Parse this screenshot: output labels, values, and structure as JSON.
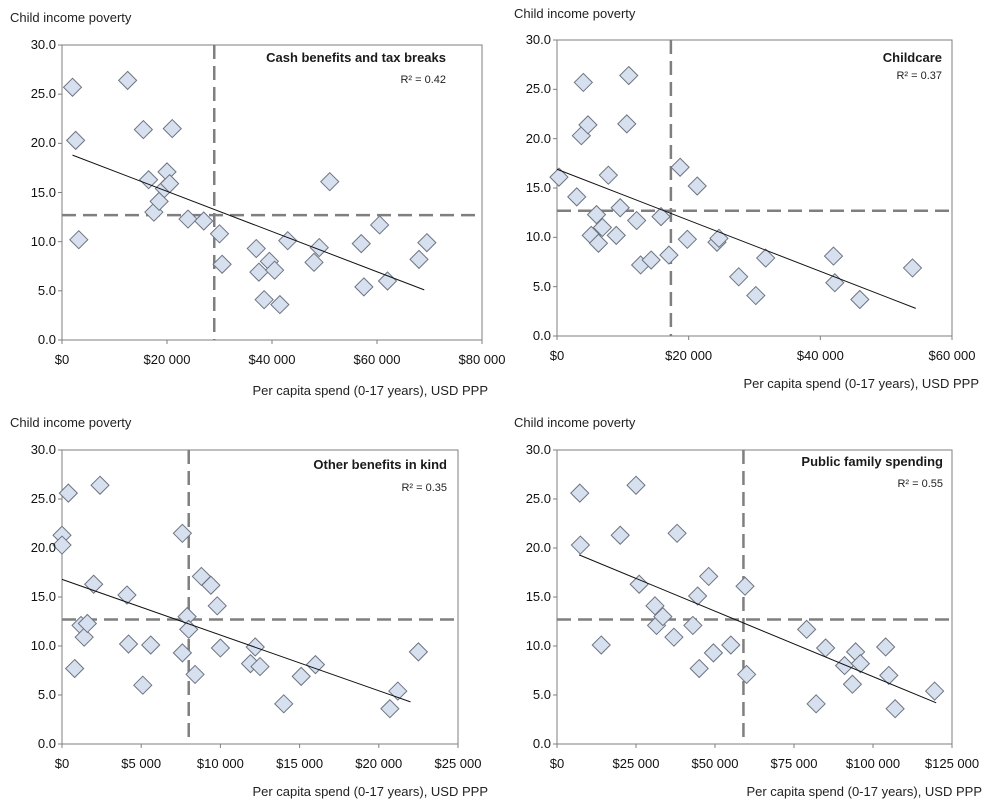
{
  "chart_data": [
    {
      "type": "scatter",
      "title": "Cash benefits and tax breaks",
      "r2_label": "R² = 0.42",
      "ylabel": "Child income poverty",
      "xlabel": "Per capita spend (0-17 years), USD PPP",
      "xlim": [
        0,
        80000
      ],
      "ylim": [
        0,
        30
      ],
      "xticks": [
        0,
        20000,
        40000,
        60000,
        80000
      ],
      "xtick_labels": [
        "$0",
        "$20 000",
        "$40 000",
        "$60 000",
        "$80 000"
      ],
      "yticks": [
        0,
        5,
        10,
        15,
        20,
        25,
        30
      ],
      "ytick_labels": [
        "0.0",
        "5.0",
        "10.0",
        "15.0",
        "20.0",
        "25.0",
        "30.0"
      ],
      "ref_x": 29000,
      "ref_y": 12.7,
      "trendline": [
        [
          2000,
          18.8
        ],
        [
          69000,
          5.1
        ]
      ],
      "points": [
        [
          2000,
          25.7
        ],
        [
          2600,
          20.3
        ],
        [
          3200,
          10.2
        ],
        [
          12500,
          26.4
        ],
        [
          15500,
          21.4
        ],
        [
          16500,
          16.3
        ],
        [
          17500,
          13.0
        ],
        [
          18500,
          14.1
        ],
        [
          19500,
          15.4
        ],
        [
          20000,
          17.1
        ],
        [
          20500,
          15.9
        ],
        [
          21000,
          21.5
        ],
        [
          24000,
          12.3
        ],
        [
          27000,
          12.1
        ],
        [
          30000,
          10.8
        ],
        [
          30500,
          7.7
        ],
        [
          37000,
          9.3
        ],
        [
          37500,
          6.9
        ],
        [
          38500,
          4.1
        ],
        [
          39500,
          8.0
        ],
        [
          40500,
          7.1
        ],
        [
          41500,
          3.6
        ],
        [
          43000,
          10.1
        ],
        [
          48000,
          7.9
        ],
        [
          49000,
          9.4
        ],
        [
          51000,
          16.1
        ],
        [
          57000,
          9.8
        ],
        [
          57500,
          5.4
        ],
        [
          60500,
          11.7
        ],
        [
          62000,
          6.0
        ],
        [
          68000,
          8.2
        ],
        [
          69500,
          9.9
        ]
      ]
    },
    {
      "type": "scatter",
      "title": "Childcare",
      "r2_label": "R² = 0.37",
      "ylabel": "Child income poverty",
      "xlabel": "Per capita spend (0-17 years), USD PPP",
      "xlim": [
        0,
        60000
      ],
      "ylim": [
        0,
        30
      ],
      "xticks": [
        0,
        20000,
        40000,
        60000
      ],
      "xtick_labels": [
        "$0",
        "$20 000",
        "$40 000",
        "$60 000"
      ],
      "yticks": [
        0,
        5,
        10,
        15,
        20,
        25,
        30
      ],
      "ytick_labels": [
        "0.0",
        "5.0",
        "10.0",
        "15.0",
        "20.0",
        "25.0",
        "30.0"
      ],
      "ref_x": 17300,
      "ref_y": 12.7,
      "trendline": [
        [
          0,
          16.9
        ],
        [
          54500,
          2.8
        ]
      ],
      "points": [
        [
          300,
          16.1
        ],
        [
          3000,
          14.1
        ],
        [
          3700,
          20.3
        ],
        [
          4000,
          25.7
        ],
        [
          4700,
          21.4
        ],
        [
          5200,
          10.2
        ],
        [
          6000,
          12.3
        ],
        [
          6300,
          9.4
        ],
        [
          6900,
          11.0
        ],
        [
          7800,
          16.3
        ],
        [
          9000,
          10.2
        ],
        [
          9600,
          13.0
        ],
        [
          10600,
          21.5
        ],
        [
          10900,
          26.4
        ],
        [
          12100,
          11.7
        ],
        [
          12700,
          7.2
        ],
        [
          14300,
          7.7
        ],
        [
          15800,
          12.1
        ],
        [
          17000,
          8.2
        ],
        [
          18700,
          17.1
        ],
        [
          19800,
          9.8
        ],
        [
          21300,
          15.2
        ],
        [
          24300,
          9.5
        ],
        [
          24600,
          9.9
        ],
        [
          27600,
          6.0
        ],
        [
          30200,
          4.1
        ],
        [
          31700,
          7.9
        ],
        [
          42000,
          8.1
        ],
        [
          42200,
          5.4
        ],
        [
          46000,
          3.7
        ],
        [
          54000,
          6.9
        ]
      ]
    },
    {
      "type": "scatter",
      "title": "Other benefits in kind",
      "r2_label": "R² = 0.35",
      "ylabel": "Child income poverty",
      "xlabel": "Per capita spend (0-17 years), USD PPP",
      "xlim": [
        0,
        25000
      ],
      "ylim": [
        0,
        30
      ],
      "xticks": [
        0,
        5000,
        10000,
        15000,
        20000,
        25000
      ],
      "xtick_labels": [
        "$0",
        "$5 000",
        "$10 000",
        "$15 000",
        "$20 000",
        "$25 000"
      ],
      "yticks": [
        0,
        5,
        10,
        15,
        20,
        25,
        30
      ],
      "ytick_labels": [
        "0.0",
        "5.0",
        "10.0",
        "15.0",
        "20.0",
        "25.0",
        "30.0"
      ],
      "ref_x": 8000,
      "ref_y": 12.7,
      "trendline": [
        [
          0,
          16.8
        ],
        [
          22000,
          4.3
        ]
      ],
      "points": [
        [
          0,
          21.3
        ],
        [
          0,
          20.3
        ],
        [
          400,
          25.6
        ],
        [
          800,
          7.7
        ],
        [
          1200,
          12.1
        ],
        [
          1400,
          10.9
        ],
        [
          1600,
          12.3
        ],
        [
          2000,
          16.3
        ],
        [
          2400,
          26.4
        ],
        [
          4100,
          15.2
        ],
        [
          4200,
          10.2
        ],
        [
          5100,
          6.0
        ],
        [
          5600,
          10.1
        ],
        [
          7600,
          21.5
        ],
        [
          7600,
          9.3
        ],
        [
          7900,
          13.0
        ],
        [
          8000,
          11.7
        ],
        [
          8400,
          7.1
        ],
        [
          8800,
          17.1
        ],
        [
          9400,
          16.2
        ],
        [
          9800,
          14.1
        ],
        [
          10000,
          9.8
        ],
        [
          11900,
          8.2
        ],
        [
          12200,
          9.9
        ],
        [
          12500,
          7.9
        ],
        [
          14000,
          4.1
        ],
        [
          15100,
          6.9
        ],
        [
          16000,
          8.1
        ],
        [
          20700,
          3.6
        ],
        [
          21200,
          5.4
        ],
        [
          22500,
          9.4
        ]
      ]
    },
    {
      "type": "scatter",
      "title": "Public family spending",
      "r2_label": "R² = 0.55",
      "ylabel": "Child income poverty",
      "xlabel": "Per capita spend (0-17 years), USD PPP",
      "xlim": [
        0,
        125000
      ],
      "ylim": [
        0,
        30
      ],
      "xticks": [
        0,
        25000,
        50000,
        75000,
        100000,
        125000
      ],
      "xtick_labels": [
        "$0",
        "$25 000",
        "$50 000",
        "$75 000",
        "$100 000",
        "$125 000"
      ],
      "yticks": [
        0,
        5,
        10,
        15,
        20,
        25,
        30
      ],
      "ytick_labels": [
        "0.0",
        "5.0",
        "10.0",
        "15.0",
        "20.0",
        "25.0",
        "30.0"
      ],
      "ref_x": 59000,
      "ref_y": 12.7,
      "trendline": [
        [
          7000,
          19.3
        ],
        [
          120000,
          4.2
        ]
      ],
      "points": [
        [
          7200,
          25.6
        ],
        [
          7400,
          20.3
        ],
        [
          14000,
          10.1
        ],
        [
          20000,
          21.3
        ],
        [
          25000,
          26.4
        ],
        [
          26000,
          16.3
        ],
        [
          31000,
          14.1
        ],
        [
          31500,
          12.1
        ],
        [
          33500,
          13.0
        ],
        [
          37000,
          10.9
        ],
        [
          38000,
          21.5
        ],
        [
          43000,
          12.1
        ],
        [
          44500,
          15.1
        ],
        [
          45000,
          7.7
        ],
        [
          48000,
          17.1
        ],
        [
          49500,
          9.3
        ],
        [
          55000,
          10.1
        ],
        [
          59500,
          16.1
        ],
        [
          60000,
          7.1
        ],
        [
          79000,
          11.7
        ],
        [
          82000,
          4.1
        ],
        [
          85000,
          9.8
        ],
        [
          91000,
          8.0
        ],
        [
          93500,
          6.1
        ],
        [
          94500,
          9.4
        ],
        [
          96000,
          8.2
        ],
        [
          104000,
          9.9
        ],
        [
          105000,
          7.0
        ],
        [
          107000,
          3.6
        ],
        [
          119500,
          5.4
        ]
      ]
    }
  ]
}
